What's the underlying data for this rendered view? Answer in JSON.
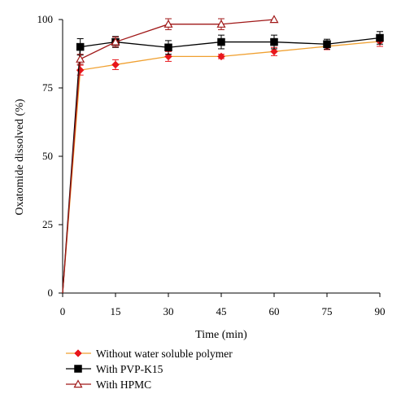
{
  "chart_data": {
    "type": "line",
    "title": "",
    "xlabel": "Time (min)",
    "ylabel": "Oxatomide dissolved (%)",
    "xlim": [
      0,
      90
    ],
    "ylim": [
      0,
      100
    ],
    "x_ticks": [
      0,
      15,
      30,
      45,
      60,
      75,
      90
    ],
    "y_ticks": [
      0,
      25,
      50,
      75,
      100
    ],
    "grid": false,
    "legend_position": "bottom-left",
    "series": [
      {
        "name": "Without water soluble polymer",
        "color": "#f0a030",
        "marker_color": "#e8161b",
        "marker": "diamond-filled",
        "x": [
          0,
          5,
          15,
          30,
          45,
          60,
          75,
          90
        ],
        "y": [
          0,
          81.5,
          83.5,
          86.5,
          86.5,
          88.3,
          90.2,
          92.0
        ],
        "error": [
          0,
          1.8,
          1.8,
          1.8,
          0.8,
          1.5,
          1.2,
          1.8
        ]
      },
      {
        "name": "With PVP-K15",
        "color": "#000000",
        "marker_color": "#000000",
        "marker": "square-filled",
        "x": [
          0,
          5,
          15,
          30,
          45,
          60,
          75,
          90
        ],
        "y": [
          0,
          90.0,
          91.8,
          89.8,
          91.8,
          91.8,
          91.0,
          93.3
        ],
        "error": [
          0,
          3.0,
          2.0,
          2.5,
          2.5,
          2.5,
          1.8,
          2.3
        ]
      },
      {
        "name": "With HPMC",
        "color": "#a01818",
        "marker_color": "#a01818",
        "marker": "triangle-open",
        "x": [
          0,
          5,
          15,
          30,
          45,
          60
        ],
        "y": [
          0,
          85.5,
          91.8,
          98.3,
          98.3,
          100
        ],
        "error": [
          0,
          1.8,
          1.8,
          2.0,
          2.0,
          0
        ]
      }
    ]
  }
}
